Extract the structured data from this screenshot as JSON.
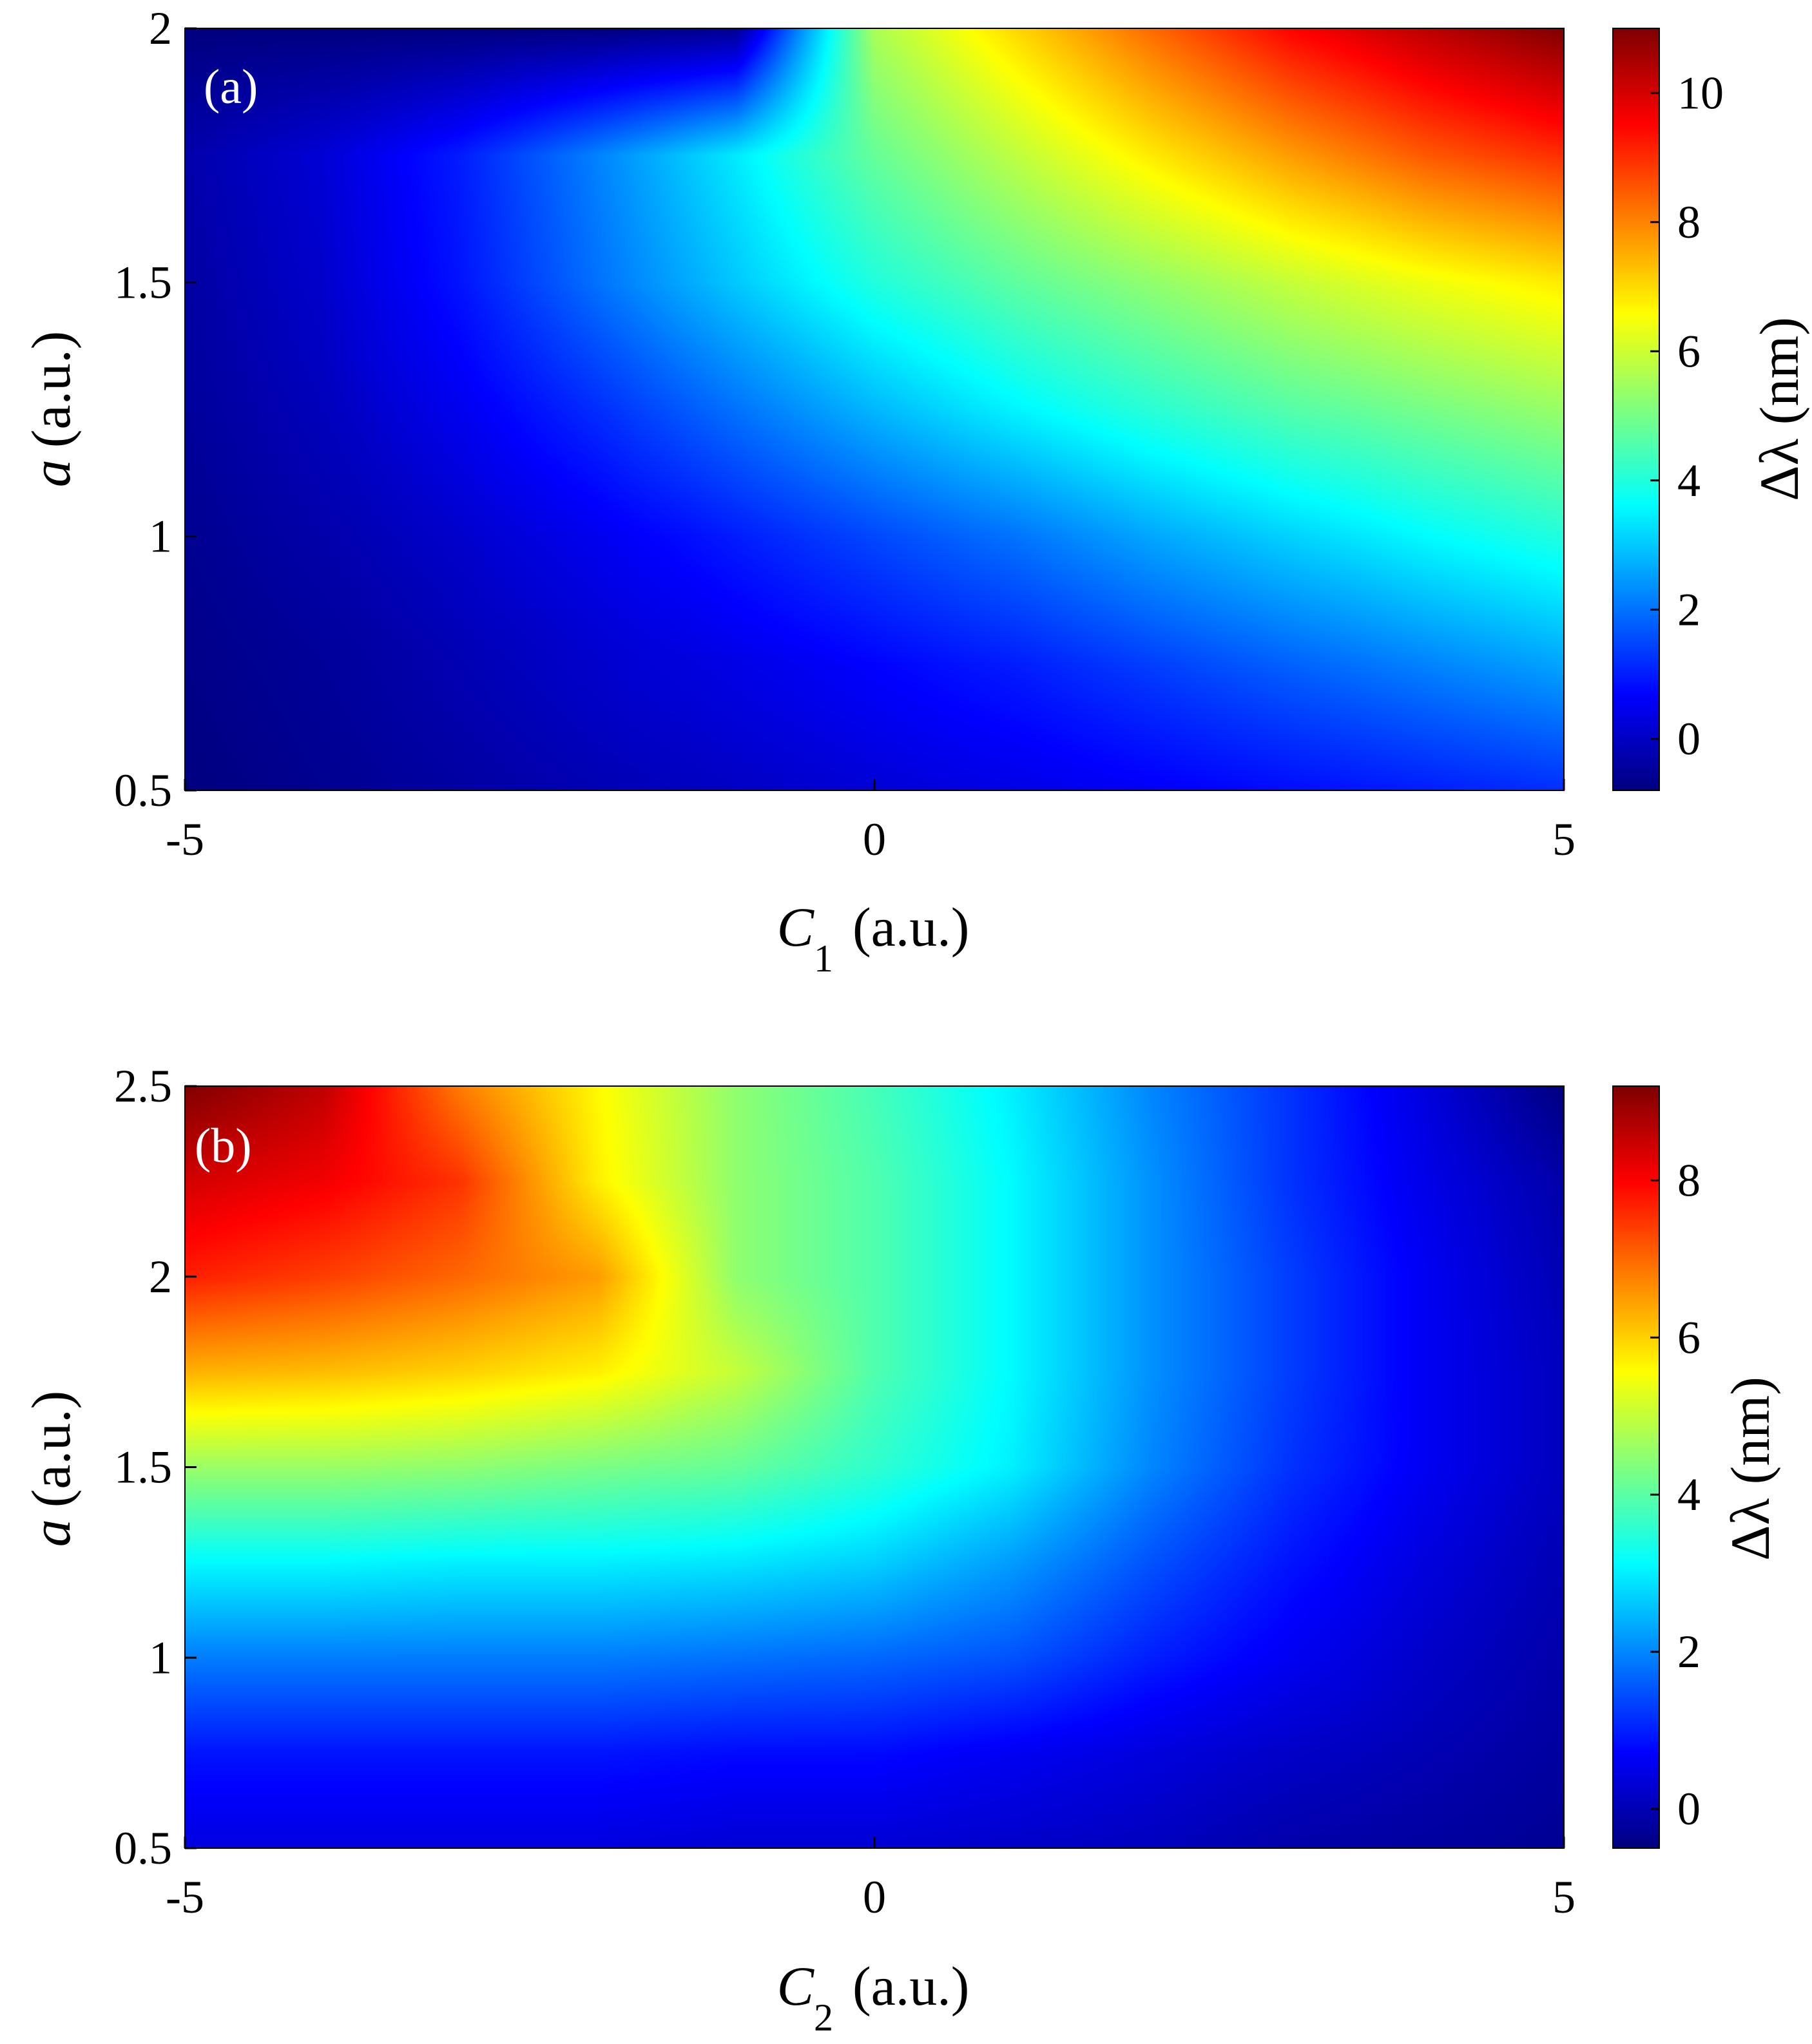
{
  "chart_data": [
    {
      "type": "heatmap",
      "panel_label": "(a)",
      "title": "",
      "xlabel": "C",
      "xlabel_subscript": "1",
      "xlabel_units": "(a.u.)",
      "ylabel": "a",
      "ylabel_units": "(a.u.)",
      "xlim": [
        -5,
        5
      ],
      "ylim": [
        0.5,
        2
      ],
      "xticks": [
        -5,
        0,
        5
      ],
      "xtick_labels": [
        "-5",
        "0",
        "5"
      ],
      "yticks": [
        0.5,
        1,
        1.5,
        2
      ],
      "ytick_labels": [
        "0.5",
        "1",
        "1.5",
        "2"
      ],
      "colorbar": {
        "label": "Δλ (nm)",
        "range": [
          -0.8,
          11
        ],
        "ticks": [
          0,
          2,
          4,
          6,
          8,
          10
        ],
        "tick_labels": [
          "0",
          "2",
          "4",
          "6",
          "8",
          "10"
        ],
        "colormap": "jet"
      },
      "x": [
        -5,
        -4,
        -3,
        -2,
        -1,
        0,
        1,
        2,
        3,
        4,
        5
      ],
      "y": [
        0.5,
        0.75,
        1.0,
        1.25,
        1.5,
        1.75,
        2.0
      ],
      "z": [
        [
          -0.8,
          -0.6,
          -0.4,
          -0.2,
          0.0,
          0.2,
          0.4,
          0.6,
          0.8,
          1.0,
          1.2
        ],
        [
          -0.7,
          -0.5,
          -0.2,
          0.1,
          0.4,
          0.7,
          1.0,
          1.4,
          1.8,
          2.2,
          2.6
        ],
        [
          -0.6,
          -0.3,
          0.1,
          0.5,
          1.0,
          1.5,
          2.0,
          2.6,
          3.1,
          3.6,
          4.0
        ],
        [
          -0.5,
          -0.1,
          0.5,
          1.2,
          2.0,
          2.8,
          3.5,
          4.1,
          4.6,
          5.0,
          5.4
        ],
        [
          -0.4,
          0.1,
          0.9,
          2.0,
          3.0,
          4.0,
          4.7,
          5.3,
          5.9,
          6.4,
          6.8
        ],
        [
          -0.3,
          0.2,
          1.0,
          2.2,
          3.4,
          4.8,
          5.8,
          6.8,
          7.7,
          8.5,
          9.0
        ],
        [
          -0.8,
          -0.8,
          -0.8,
          -0.8,
          -0.6,
          5.6,
          7.0,
          8.3,
          9.5,
          10.3,
          11.0
        ]
      ]
    },
    {
      "type": "heatmap",
      "panel_label": "(b)",
      "title": "",
      "xlabel": "C",
      "xlabel_subscript": "2",
      "xlabel_units": "(a.u.)",
      "ylabel": "a",
      "ylabel_units": "(a.u.)",
      "xlim": [
        -5,
        5
      ],
      "ylim": [
        0.5,
        2.5
      ],
      "xticks": [
        -5,
        0,
        5
      ],
      "xtick_labels": [
        "-5",
        "0",
        "5"
      ],
      "yticks": [
        0.5,
        1,
        1.5,
        2,
        2.5
      ],
      "ytick_labels": [
        "0.5",
        "1",
        "1.5",
        "2",
        "2.5"
      ],
      "colorbar": {
        "label": "Δλ (nm)",
        "range": [
          -0.5,
          9.2
        ],
        "ticks": [
          0,
          2,
          4,
          6,
          8
        ],
        "tick_labels": [
          "0",
          "2",
          "4",
          "6",
          "8"
        ],
        "colormap": "jet"
      },
      "x": [
        -5,
        -4,
        -3,
        -2,
        -1,
        0,
        1,
        2,
        3,
        4,
        5
      ],
      "y": [
        0.5,
        0.75,
        1.0,
        1.25,
        1.5,
        1.75,
        2.0,
        2.25,
        2.5
      ],
      "z": [
        [
          0.4,
          0.4,
          0.4,
          0.4,
          0.3,
          0.3,
          0.2,
          0.1,
          -0.1,
          -0.2,
          -0.3
        ],
        [
          0.9,
          0.9,
          0.9,
          0.9,
          0.8,
          0.8,
          0.6,
          0.4,
          0.2,
          0.0,
          -0.2
        ],
        [
          1.9,
          1.9,
          1.9,
          1.9,
          1.8,
          1.7,
          1.5,
          1.0,
          0.6,
          0.2,
          -0.1
        ],
        [
          3.1,
          3.1,
          3.0,
          3.0,
          2.9,
          2.7,
          2.2,
          1.5,
          0.9,
          0.4,
          0.0
        ],
        [
          4.6,
          4.6,
          4.5,
          4.3,
          4.1,
          3.6,
          3.0,
          2.0,
          1.2,
          0.6,
          0.1
        ],
        [
          6.3,
          6.2,
          6.0,
          5.7,
          5.0,
          3.9,
          3.1,
          2.1,
          1.3,
          0.6,
          0.1
        ],
        [
          7.7,
          7.4,
          7.0,
          6.5,
          4.5,
          3.9,
          3.1,
          2.1,
          1.3,
          0.6,
          0.0
        ],
        [
          8.4,
          8.1,
          7.5,
          5.7,
          4.5,
          3.9,
          3.1,
          2.1,
          1.2,
          0.5,
          -0.1
        ],
        [
          9.2,
          8.6,
          6.8,
          5.6,
          4.5,
          3.8,
          3.0,
          2.0,
          1.2,
          0.4,
          -0.5
        ]
      ]
    }
  ]
}
